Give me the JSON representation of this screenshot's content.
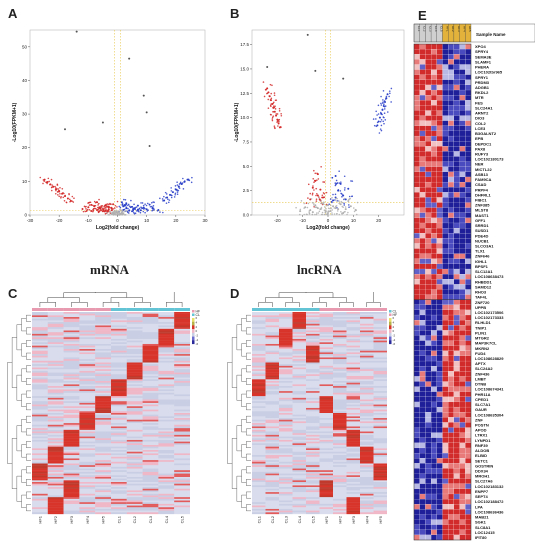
{
  "panels": {
    "a": {
      "letter": "A",
      "caption": "mRNA"
    },
    "b": {
      "letter": "B",
      "caption": "lncRNA"
    },
    "c": {
      "letter": "C"
    },
    "d": {
      "letter": "D"
    },
    "e": {
      "letter": "E",
      "header": "Sample Name"
    }
  },
  "chart_data": [
    {
      "type": "scatter",
      "panel": "A",
      "xlabel": "Log2(fold change)",
      "ylabel": "-Log10(FPKM+1)",
      "xlim": [
        -30,
        30
      ],
      "ylim": [
        0,
        55
      ],
      "xticks": [
        -30,
        -20,
        -10,
        0,
        10,
        20,
        30
      ],
      "yticks": [
        0,
        10,
        20,
        30,
        40,
        50
      ],
      "thresholds": {
        "x": [
          -1,
          1
        ],
        "y": 1.3
      },
      "series": [
        {
          "name": "down",
          "color": "#d42a2a",
          "points": [
            [
              -25,
              10.5
            ],
            [
              -24,
              9.8
            ],
            [
              -23,
              9.1
            ],
            [
              -22,
              8.4
            ],
            [
              -21,
              7.7
            ],
            [
              -20,
              7.0
            ],
            [
              -19,
              6.3
            ],
            [
              -18,
              5.6
            ],
            [
              -17,
              4.9
            ],
            [
              -16,
              4.2
            ],
            [
              -9,
              3.0
            ],
            [
              -8,
              2.6
            ],
            [
              -7,
              3.8
            ],
            [
              -6,
              2.2
            ],
            [
              -5,
              1.8
            ],
            [
              -4,
              2.9
            ],
            [
              -3,
              1.6
            ],
            [
              -2,
              2.0
            ],
            [
              -9,
              1.2
            ],
            [
              -7,
              1.5
            ],
            [
              -5,
              1.1
            ],
            [
              -3,
              2.5
            ],
            [
              -2,
              1.4
            ],
            [
              -6,
              1.9
            ],
            [
              -4,
              1.3
            ],
            [
              -12,
              1.8
            ],
            [
              -10,
              2.3
            ],
            [
              -1.5,
              3.2
            ]
          ]
        },
        {
          "name": "up",
          "color": "#2a3fc8",
          "points": [
            [
              16,
              4.3
            ],
            [
              17,
              5.2
            ],
            [
              18,
              6.0
            ],
            [
              19,
              6.8
            ],
            [
              20,
              7.6
            ],
            [
              21,
              8.4
            ],
            [
              22,
              9.2
            ],
            [
              23,
              9.9
            ],
            [
              24,
              10.5
            ],
            [
              2,
              1.5
            ],
            [
              3,
              2.0
            ],
            [
              4,
              1.3
            ],
            [
              5,
              2.4
            ],
            [
              6,
              1.8
            ],
            [
              7,
              2.8
            ],
            [
              8,
              1.4
            ],
            [
              9,
              2.2
            ],
            [
              10,
              1.7
            ],
            [
              11,
              3.1
            ],
            [
              3,
              3.5
            ],
            [
              5,
              1.1
            ],
            [
              7,
              1.6
            ],
            [
              2,
              2.6
            ],
            [
              12,
              2.0
            ],
            [
              14,
              1.5
            ],
            [
              1.5,
              3.8
            ]
          ]
        },
        {
          "name": "ns",
          "color": "#b0b0b0",
          "points": [
            [
              -1,
              0.4
            ],
            [
              0,
              0.7
            ],
            [
              1,
              0.3
            ],
            [
              -0.5,
              1.0
            ],
            [
              0.5,
              0.9
            ],
            [
              -1.5,
              0.6
            ],
            [
              1.5,
              0.5
            ],
            [
              0,
              0.2
            ],
            [
              -2,
              0.3
            ],
            [
              2,
              0.4
            ],
            [
              -0.8,
              0.15
            ],
            [
              0.8,
              0.25
            ]
          ]
        },
        {
          "name": "outlier",
          "color": "#555555",
          "points": [
            [
              -14,
              54.5
            ],
            [
              4,
              46.5
            ],
            [
              9,
              35.5
            ],
            [
              10,
              30.5
            ],
            [
              -5,
              27.5
            ],
            [
              -18,
              25.5
            ],
            [
              11,
              20.5
            ]
          ]
        }
      ]
    },
    {
      "type": "scatter",
      "panel": "B",
      "xlabel": "Log2(fold change)",
      "ylabel": "-Log10(FPKM+1)",
      "xlim": [
        -30,
        30
      ],
      "ylim": [
        0,
        19
      ],
      "xticks": [
        -20,
        -10,
        0,
        10,
        20
      ],
      "yticks": [
        0,
        2.5,
        5.0,
        7.5,
        10.0,
        12.5,
        15.0,
        17.5
      ],
      "thresholds": {
        "x": [
          -1,
          1
        ],
        "y": 1.3
      },
      "series": [
        {
          "name": "down",
          "color": "#d42a2a",
          "points": [
            [
              -24,
              13.0
            ],
            [
              -23.5,
              12.6
            ],
            [
              -23,
              12.2
            ],
            [
              -22.5,
              11.8
            ],
            [
              -22,
              11.4
            ],
            [
              -21.5,
              11.0
            ],
            [
              -21,
              10.6
            ],
            [
              -20.5,
              10.2
            ],
            [
              -20,
              9.8
            ],
            [
              -19.5,
              9.4
            ],
            [
              -19,
              9.0
            ],
            [
              -6,
              2.8
            ],
            [
              -5,
              3.5
            ],
            [
              -4,
              2.0
            ],
            [
              -3,
              2.6
            ],
            [
              -2,
              1.8
            ],
            [
              -7,
              1.6
            ],
            [
              -4,
              4.2
            ],
            [
              -3,
              1.5
            ]
          ]
        },
        {
          "name": "up",
          "color": "#2a3fc8",
          "points": [
            [
              19.5,
              9.2
            ],
            [
              20,
              9.6
            ],
            [
              20.5,
              10.0
            ],
            [
              21,
              10.4
            ],
            [
              21.5,
              10.8
            ],
            [
              22,
              11.2
            ],
            [
              22.5,
              11.6
            ],
            [
              23,
              12.0
            ],
            [
              23.5,
              12.4
            ],
            [
              3,
              1.8
            ],
            [
              4,
              2.5
            ],
            [
              5,
              3.2
            ],
            [
              6,
              2.0
            ],
            [
              7,
              1.6
            ],
            [
              8,
              2.7
            ],
            [
              3,
              4.0
            ],
            [
              2,
              1.5
            ]
          ]
        },
        {
          "name": "ns",
          "color": "#b0b0b0",
          "points": [
            [
              -9,
              0.8
            ],
            [
              -7,
              0.5
            ],
            [
              -5,
              1.0
            ],
            [
              -3,
              0.6
            ],
            [
              -1,
              0.3
            ],
            [
              0,
              0.2
            ],
            [
              1,
              0.4
            ],
            [
              3,
              0.7
            ],
            [
              5,
              1.1
            ],
            [
              7,
              0.6
            ],
            [
              9,
              0.9
            ],
            [
              -11,
              0.4
            ],
            [
              11,
              0.5
            ],
            [
              -2,
              1.2
            ],
            [
              2,
              0.9
            ],
            [
              -6,
              0.3
            ],
            [
              6,
              0.2
            ],
            [
              -4,
              0.7
            ],
            [
              4,
              0.6
            ],
            [
              0,
              1.0
            ]
          ]
        },
        {
          "name": "outlier",
          "color": "#555555",
          "points": [
            [
              -24,
              15.2
            ],
            [
              -8,
              18.5
            ],
            [
              6,
              14.0
            ],
            [
              -5,
              14.8
            ]
          ]
        }
      ]
    },
    {
      "type": "heatmap",
      "panel": "C",
      "columns": [
        "HF1",
        "HF2",
        "HF3",
        "HF4",
        "HF5",
        "CL1",
        "CL2",
        "CL3",
        "CL4",
        "CL5"
      ],
      "legend": {
        "groups": [
          "HF",
          "CL"
        ],
        "colors": [
          "#e79ab0",
          "#62c4d4"
        ],
        "scale": [
          "-6",
          "-4",
          "-2",
          "0",
          "2",
          "4",
          "6"
        ]
      }
    },
    {
      "type": "heatmap",
      "panel": "D",
      "columns": [
        "CL1",
        "CL2",
        "CL3",
        "CL4",
        "CL5",
        "HF1",
        "HF2",
        "HF3",
        "HF4",
        "HF5"
      ],
      "legend": {
        "groups": [
          "CL",
          "HF"
        ],
        "colors": [
          "#62c4d4",
          "#e79ab0"
        ],
        "scale": [
          "-6",
          "-4",
          "-2",
          "0",
          "2",
          "4",
          "6"
        ]
      }
    },
    {
      "type": "heatmap",
      "panel": "E",
      "header": "Sample Name",
      "columns": [
        "CL1",
        "CL2",
        "CL3",
        "CL4",
        "CL5",
        "HF1",
        "HF2",
        "HF3",
        "HF4",
        "HF5"
      ],
      "genes_top": [
        "XPO4",
        "SPRY4",
        "SEMA3E",
        "SLAMF1",
        "PHERA",
        "LOC102tbr965",
        "SPRY1",
        "PRDM3",
        "ADGB1",
        "RKDL2",
        "MTR",
        "FES",
        "SLC24A1",
        "ARNT2",
        "DIO3",
        "COL2",
        "LCE3",
        "B3GALNT2",
        "EPB",
        "DEPDC1",
        "PAX8",
        "RUFY3",
        "LOC102180173",
        "NER",
        "MICTL22",
        "ASB13",
        "FAM9CA",
        "CSAD",
        "PRPF4",
        "DHFRL1",
        "FIBC1",
        "ZNF385",
        "MLST8",
        "MAST1",
        "GFF1",
        "SRRD1",
        "SUSD1",
        "PDE4D",
        "NUCB1",
        "SLCO3A1",
        "TLX1",
        "ZNF646",
        "IGHL1",
        "BPSF1",
        "SLC12A1",
        "LOC108638473",
        "RHBDD1",
        "SAMD12",
        "RHO3",
        "TAF4L"
      ],
      "genes_bottom": [
        "ZNF720",
        "UPPB",
        "LOC102173506",
        "LOC102173333",
        "RLHLD1",
        "TNIP1",
        "PLIN1",
        "MTGR2",
        "MAP3K7CL",
        "MKRN2",
        "FUD4",
        "LOC108628829",
        "APTX",
        "SLC24A2",
        "ZNF436",
        "LMBT",
        "DTNB",
        "LOC108674341",
        "PHR11A",
        "CPED1",
        "SLC7A1",
        "GAUR",
        "LOC108635304",
        "ZNF",
        "POSTN",
        "APOD",
        "LTRX1",
        "LYNPD1",
        "RNF39",
        "ALDOB",
        "ELBID",
        "SETC1",
        "GOSTRIN",
        "DDX34",
        "MROH1",
        "SLC27A6",
        "LOC102183132",
        "ENPP7",
        "SEPT4",
        "LOC102188472",
        "LPA",
        "LOC108636436",
        "MAB21",
        "SGK1",
        "SLC8A1",
        "LOC12415",
        "IFIT80"
      ]
    }
  ]
}
